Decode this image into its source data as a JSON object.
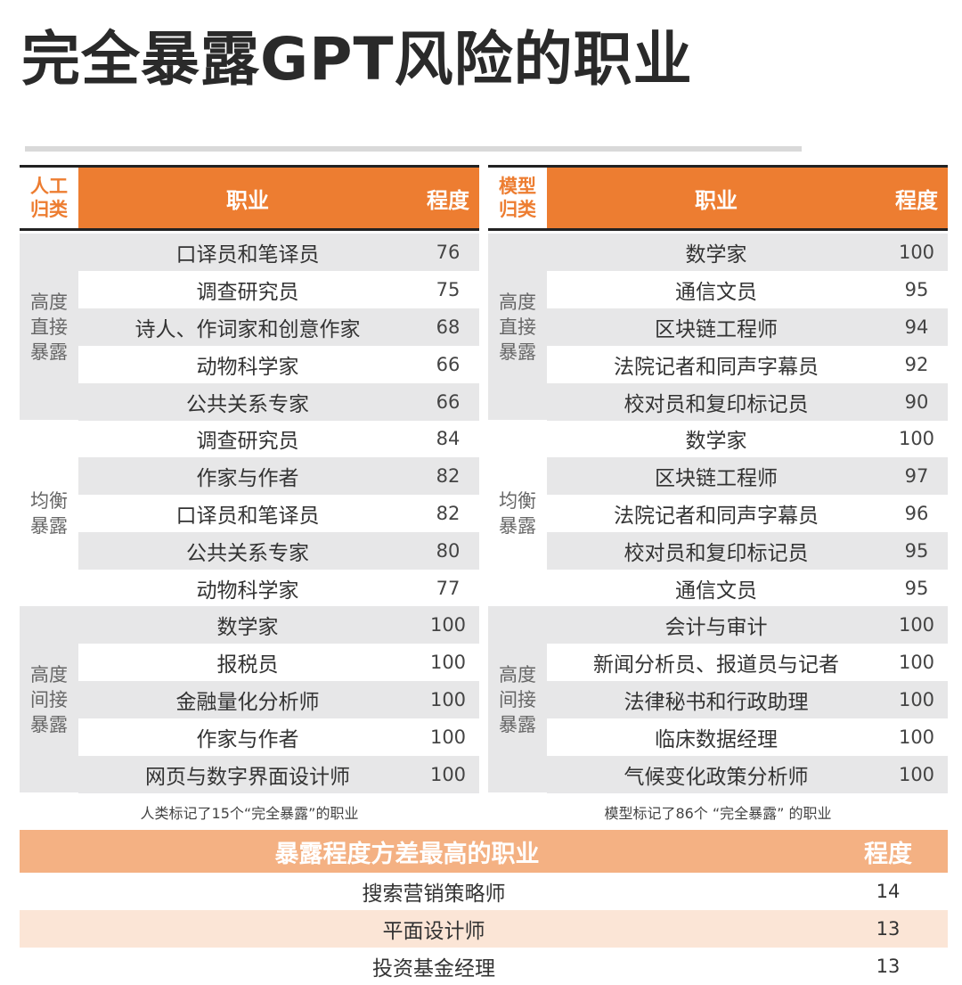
{
  "title": "完全暴露GPT风险的职业",
  "left": {
    "header": {
      "category": "人工\n归类",
      "job": "职业",
      "score": "程度"
    },
    "groups": [
      {
        "label": "高度\n直接\n暴露",
        "rows": [
          {
            "job": "口译员和笔译员",
            "score": "76"
          },
          {
            "job": "调查研究员",
            "score": "75"
          },
          {
            "job": "诗人、作词家和创意作家",
            "score": "68"
          },
          {
            "job": "动物科学家",
            "score": "66"
          },
          {
            "job": "公共关系专家",
            "score": "66"
          }
        ]
      },
      {
        "label": "均衡\n暴露",
        "rows": [
          {
            "job": "调查研究员",
            "score": "84"
          },
          {
            "job": "作家与作者",
            "score": "82"
          },
          {
            "job": "口译员和笔译员",
            "score": "82"
          },
          {
            "job": "公共关系专家",
            "score": "80"
          },
          {
            "job": "动物科学家",
            "score": "77"
          }
        ]
      },
      {
        "label": "高度\n间接\n暴露",
        "rows": [
          {
            "job": "数学家",
            "score": "100"
          },
          {
            "job": "报税员",
            "score": "100"
          },
          {
            "job": "金融量化分析师",
            "score": "100"
          },
          {
            "job": "作家与作者",
            "score": "100"
          },
          {
            "job": "网页与数字界面设计师",
            "score": "100"
          }
        ]
      }
    ],
    "caption": "人类标记了15个“完全暴露”的职业"
  },
  "right": {
    "header": {
      "category": "模型\n归类",
      "job": "职业",
      "score": "程度"
    },
    "groups": [
      {
        "label": "高度\n直接\n暴露",
        "rows": [
          {
            "job": "数学家",
            "score": "100"
          },
          {
            "job": "通信文员",
            "score": "95"
          },
          {
            "job": "区块链工程师",
            "score": "94"
          },
          {
            "job": "法院记者和同声字幕员",
            "score": "92"
          },
          {
            "job": "校对员和复印标记员",
            "score": "90"
          }
        ]
      },
      {
        "label": "均衡\n暴露",
        "rows": [
          {
            "job": "数学家",
            "score": "100"
          },
          {
            "job": "区块链工程师",
            "score": "97"
          },
          {
            "job": "法院记者和同声字幕员",
            "score": "96"
          },
          {
            "job": "校对员和复印标记员",
            "score": "95"
          },
          {
            "job": "通信文员",
            "score": "95"
          }
        ]
      },
      {
        "label": "高度\n间接\n暴露",
        "rows": [
          {
            "job": "会计与审计",
            "score": "100"
          },
          {
            "job": "新闻分析员、报道员与记者",
            "score": "100"
          },
          {
            "job": "法律秘书和行政助理",
            "score": "100"
          },
          {
            "job": "临床数据经理",
            "score": "100"
          },
          {
            "job": "气候变化政策分析师",
            "score": "100"
          }
        ]
      }
    ],
    "caption": "模型标记了86个 “完全暴露” 的职业"
  },
  "bottom": {
    "header": {
      "job": "暴露程度方差最高的职业",
      "score": "程度"
    },
    "rows": [
      {
        "job": "搜索营销策略师",
        "score": "14"
      },
      {
        "job": "平面设计师",
        "score": "13"
      },
      {
        "job": "投资基金经理",
        "score": "13"
      }
    ]
  },
  "colors": {
    "accent": "#ed7d31",
    "light_accent": "#f4b183",
    "peach": "#fbe5d6",
    "shade": "#e7e7e8"
  }
}
